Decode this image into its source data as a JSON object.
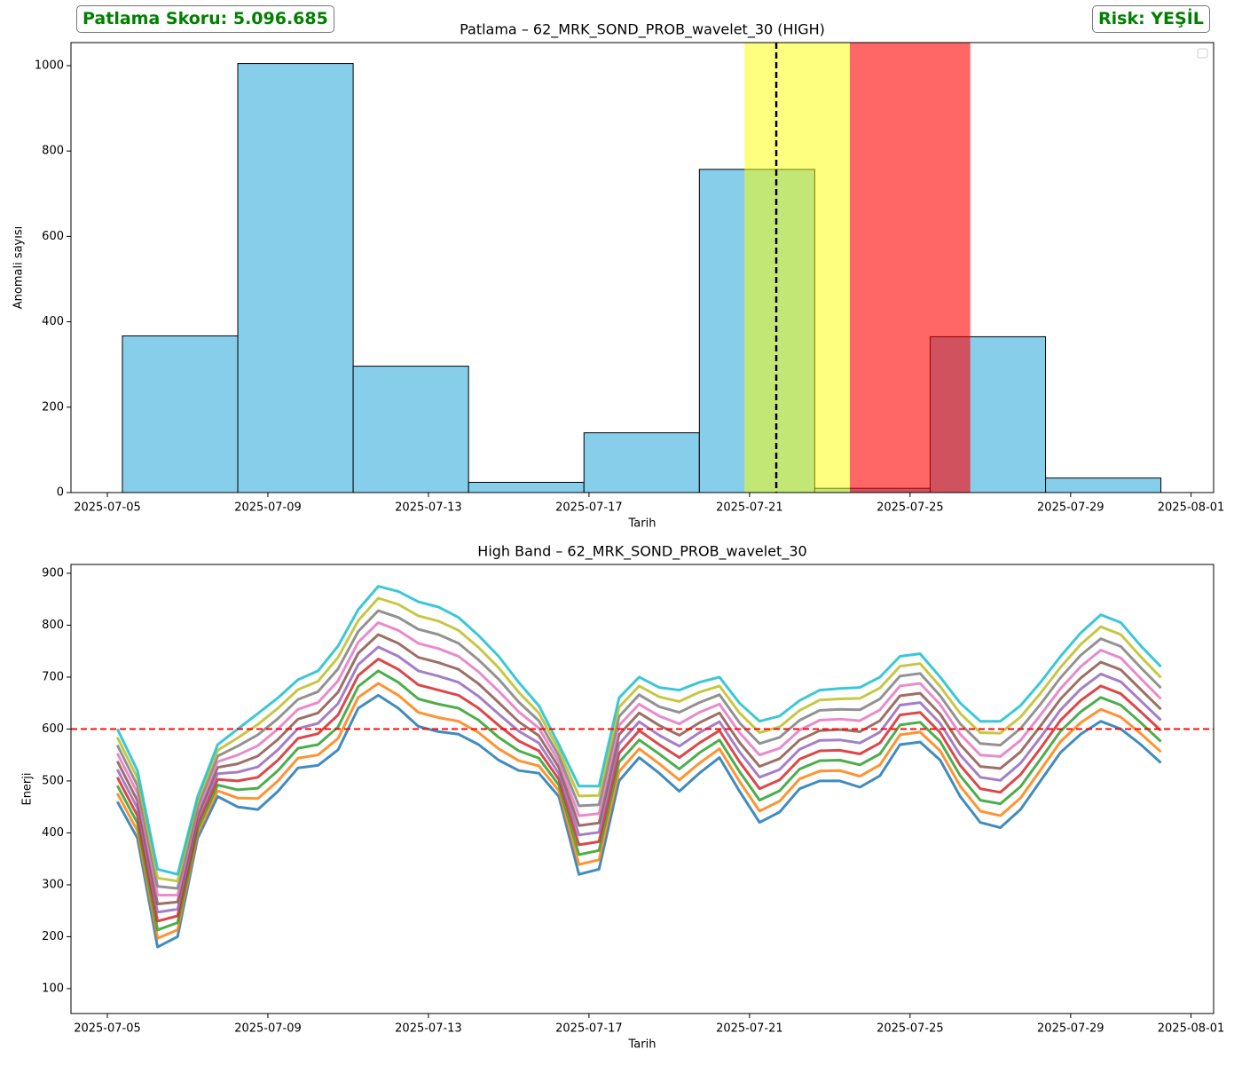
{
  "header": {
    "score": "Patlama Skoru: 5.096.685",
    "risk": "Risk: YEŞİL"
  },
  "chart_data": [
    {
      "type": "histogram",
      "title": "Patlama – 62_MRK_SOND_PROB_wavelet_30 (HIGH)",
      "xlabel": "Tarih",
      "ylabel": "Anomali sayısı",
      "bins": [
        "2025-07-05T09:00",
        "2025-07-08T06:00",
        "2025-07-11T03:00",
        "2025-07-14T00:00",
        "2025-07-16T21:00",
        "2025-07-19T18:00",
        "2025-07-22T15:00",
        "2025-07-25T12:00",
        "2025-07-28T09:00",
        "2025-07-31T06:00"
      ],
      "values": [
        367,
        1005,
        296,
        24,
        140,
        757,
        10,
        365,
        34
      ],
      "color": "#87ceeb",
      "edgecolor": "#000000",
      "xlim": [
        "2025-07-04T02:15",
        "2025-08-01T13:30"
      ],
      "xticks": [
        "2025-07-05",
        "2025-07-09",
        "2025-07-13",
        "2025-07-17",
        "2025-07-21",
        "2025-07-25",
        "2025-07-29",
        "2025-08-01"
      ],
      "ylim": [
        0,
        1054
      ],
      "yticks": [
        0,
        200,
        400,
        600,
        800,
        1000
      ],
      "spans": [
        {
          "start": "2025-07-20T21:00",
          "end": "2025-07-23T12:00",
          "color": "#ffff00",
          "opacity": 0.5
        },
        {
          "start": "2025-07-23T12:00",
          "end": "2025-07-26T12:00",
          "color": "#ff0000",
          "opacity": 0.6
        }
      ],
      "vline": {
        "x": "2025-07-21T16:00",
        "color": "#000000",
        "style": "dashed"
      },
      "legend": "upper right"
    },
    {
      "type": "line",
      "title": "High Band – 62_MRK_SOND_PROB_wavelet_30",
      "xlabel": "Tarih",
      "ylabel": "Enerji",
      "x": [
        "2025-07-05T06:00",
        "2025-07-05T18:00",
        "2025-07-06T06:00",
        "2025-07-06T18:00",
        "2025-07-07T06:00",
        "2025-07-07T18:00",
        "2025-07-08T06:00",
        "2025-07-08T18:00",
        "2025-07-09T06:00",
        "2025-07-09T18:00",
        "2025-07-10T06:00",
        "2025-07-10T18:00",
        "2025-07-11T06:00",
        "2025-07-11T18:00",
        "2025-07-12T06:00",
        "2025-07-12T18:00",
        "2025-07-13T06:00",
        "2025-07-13T18:00",
        "2025-07-14T06:00",
        "2025-07-14T18:00",
        "2025-07-15T06:00",
        "2025-07-15T18:00",
        "2025-07-16T06:00",
        "2025-07-16T18:00",
        "2025-07-17T06:00",
        "2025-07-17T18:00",
        "2025-07-18T06:00",
        "2025-07-18T18:00",
        "2025-07-19T06:00",
        "2025-07-19T18:00",
        "2025-07-20T06:00",
        "2025-07-20T18:00",
        "2025-07-21T06:00",
        "2025-07-21T18:00",
        "2025-07-22T06:00",
        "2025-07-22T18:00",
        "2025-07-23T06:00",
        "2025-07-23T18:00",
        "2025-07-24T06:00",
        "2025-07-24T18:00",
        "2025-07-25T06:00",
        "2025-07-25T18:00",
        "2025-07-26T06:00",
        "2025-07-26T18:00",
        "2025-07-27T06:00",
        "2025-07-27T18:00",
        "2025-07-28T06:00",
        "2025-07-28T18:00",
        "2025-07-29T06:00",
        "2025-07-29T18:00",
        "2025-07-30T06:00",
        "2025-07-30T18:00",
        "2025-07-31T06:00"
      ],
      "series": [
        {
          "color": "#1f77b4",
          "values": [
            460,
            390,
            180,
            200,
            390,
            470,
            450,
            445,
            480,
            525,
            530,
            560,
            640,
            665,
            640,
            605,
            595,
            590,
            570,
            540,
            520,
            515,
            470,
            320,
            330,
            500,
            545,
            515,
            480,
            515,
            545,
            480,
            420,
            440,
            485,
            500,
            500,
            488,
            510,
            570,
            575,
            540,
            470,
            420,
            410,
            445,
            500,
            555,
            590,
            615,
            600,
            570,
            535
          ]
        },
        {
          "color": "#ff7f0e",
          "values": [
            476,
            404,
            197,
            213,
            399,
            481,
            467,
            466,
            500,
            544,
            550,
            582,
            661,
            688,
            665,
            632,
            622,
            615,
            593,
            562,
            539,
            529,
            481,
            339,
            348,
            518,
            562,
            533,
            502,
            534,
            562,
            499,
            442,
            461,
            504,
            519,
            520,
            509,
            531,
            589,
            594,
            558,
            490,
            442,
            433,
            467,
            521,
            576,
            612,
            638,
            623,
            591,
            556
          ]
        },
        {
          "color": "#2ca02c",
          "values": [
            491,
            419,
            213,
            227,
            408,
            492,
            483,
            486,
            520,
            563,
            570,
            604,
            682,
            712,
            690,
            658,
            648,
            640,
            617,
            584,
            558,
            544,
            492,
            358,
            366,
            536,
            579,
            552,
            523,
            554,
            579,
            518,
            463,
            481,
            523,
            539,
            540,
            531,
            552,
            608,
            613,
            576,
            510,
            463,
            456,
            489,
            542,
            596,
            633,
            661,
            646,
            612,
            576
          ]
        },
        {
          "color": "#d62728",
          "values": [
            507,
            433,
            230,
            240,
            417,
            503,
            500,
            507,
            540,
            582,
            591,
            627,
            703,
            735,
            715,
            685,
            675,
            665,
            640,
            607,
            577,
            558,
            503,
            377,
            383,
            553,
            597,
            570,
            545,
            573,
            597,
            537,
            485,
            502,
            542,
            558,
            559,
            552,
            573,
            627,
            632,
            593,
            530,
            485,
            478,
            512,
            563,
            617,
            655,
            683,
            668,
            633,
            597
          ]
        },
        {
          "color": "#9467bd",
          "values": [
            522,
            448,
            247,
            253,
            426,
            514,
            517,
            527,
            560,
            601,
            611,
            649,
            724,
            758,
            740,
            712,
            702,
            690,
            663,
            629,
            596,
            573,
            514,
            396,
            401,
            571,
            614,
            588,
            567,
            593,
            614,
            556,
            507,
            522,
            561,
            578,
            579,
            573,
            594,
            646,
            651,
            611,
            550,
            507,
            501,
            534,
            584,
            637,
            677,
            706,
            691,
            654,
            617
          ]
        },
        {
          "color": "#8c564b",
          "values": [
            538,
            462,
            263,
            267,
            434,
            526,
            533,
            548,
            580,
            619,
            631,
            671,
            746,
            782,
            765,
            738,
            728,
            715,
            687,
            651,
            614,
            587,
            526,
            414,
            419,
            589,
            631,
            607,
            588,
            612,
            631,
            574,
            528,
            543,
            579,
            597,
            599,
            595,
            616,
            664,
            669,
            629,
            570,
            528,
            524,
            556,
            606,
            658,
            698,
            729,
            714,
            676,
            638
          ]
        },
        {
          "color": "#e377c2",
          "values": [
            553,
            477,
            280,
            280,
            443,
            537,
            550,
            568,
            600,
            638,
            651,
            693,
            767,
            805,
            790,
            765,
            755,
            740,
            710,
            673,
            633,
            602,
            537,
            433,
            437,
            607,
            648,
            625,
            610,
            632,
            648,
            593,
            550,
            563,
            598,
            617,
            619,
            616,
            637,
            683,
            688,
            647,
            590,
            550,
            547,
            578,
            627,
            678,
            720,
            752,
            737,
            697,
            658
          ]
        },
        {
          "color": "#7f7f7f",
          "values": [
            569,
            491,
            297,
            293,
            452,
            548,
            567,
            589,
            620,
            657,
            672,
            716,
            788,
            828,
            815,
            792,
            782,
            765,
            733,
            696,
            652,
            616,
            548,
            452,
            454,
            624,
            666,
            643,
            632,
            651,
            666,
            612,
            572,
            584,
            617,
            636,
            638,
            637,
            658,
            702,
            707,
            664,
            610,
            572,
            569,
            601,
            648,
            699,
            742,
            774,
            759,
            718,
            679
          ]
        },
        {
          "color": "#bcbd22",
          "values": [
            584,
            506,
            313,
            307,
            461,
            559,
            583,
            609,
            640,
            676,
            692,
            738,
            809,
            852,
            840,
            818,
            808,
            790,
            757,
            718,
            671,
            631,
            559,
            471,
            472,
            642,
            683,
            662,
            653,
            671,
            683,
            631,
            593,
            604,
            636,
            656,
            658,
            659,
            679,
            721,
            726,
            682,
            630,
            593,
            592,
            623,
            669,
            719,
            763,
            797,
            782,
            739,
            699
          ]
        },
        {
          "color": "#17becf",
          "values": [
            600,
            520,
            330,
            320,
            470,
            570,
            600,
            630,
            660,
            695,
            712,
            760,
            830,
            875,
            865,
            845,
            835,
            815,
            780,
            740,
            690,
            645,
            570,
            490,
            490,
            660,
            700,
            680,
            675,
            690,
            700,
            650,
            615,
            625,
            655,
            675,
            678,
            680,
            700,
            740,
            745,
            700,
            650,
            615,
            615,
            645,
            690,
            740,
            785,
            820,
            805,
            760,
            720
          ]
        }
      ],
      "xlim": [
        "2025-07-04T02:15",
        "2025-08-01T13:30"
      ],
      "xticks": [
        "2025-07-05",
        "2025-07-09",
        "2025-07-13",
        "2025-07-17",
        "2025-07-21",
        "2025-07-25",
        "2025-07-29",
        "2025-08-01"
      ],
      "ylim": [
        52,
        917
      ],
      "yticks": [
        100,
        200,
        300,
        400,
        500,
        600,
        700,
        800,
        900
      ],
      "hline": {
        "value": 600,
        "color": "#ff0000",
        "style": "dashed"
      }
    }
  ]
}
